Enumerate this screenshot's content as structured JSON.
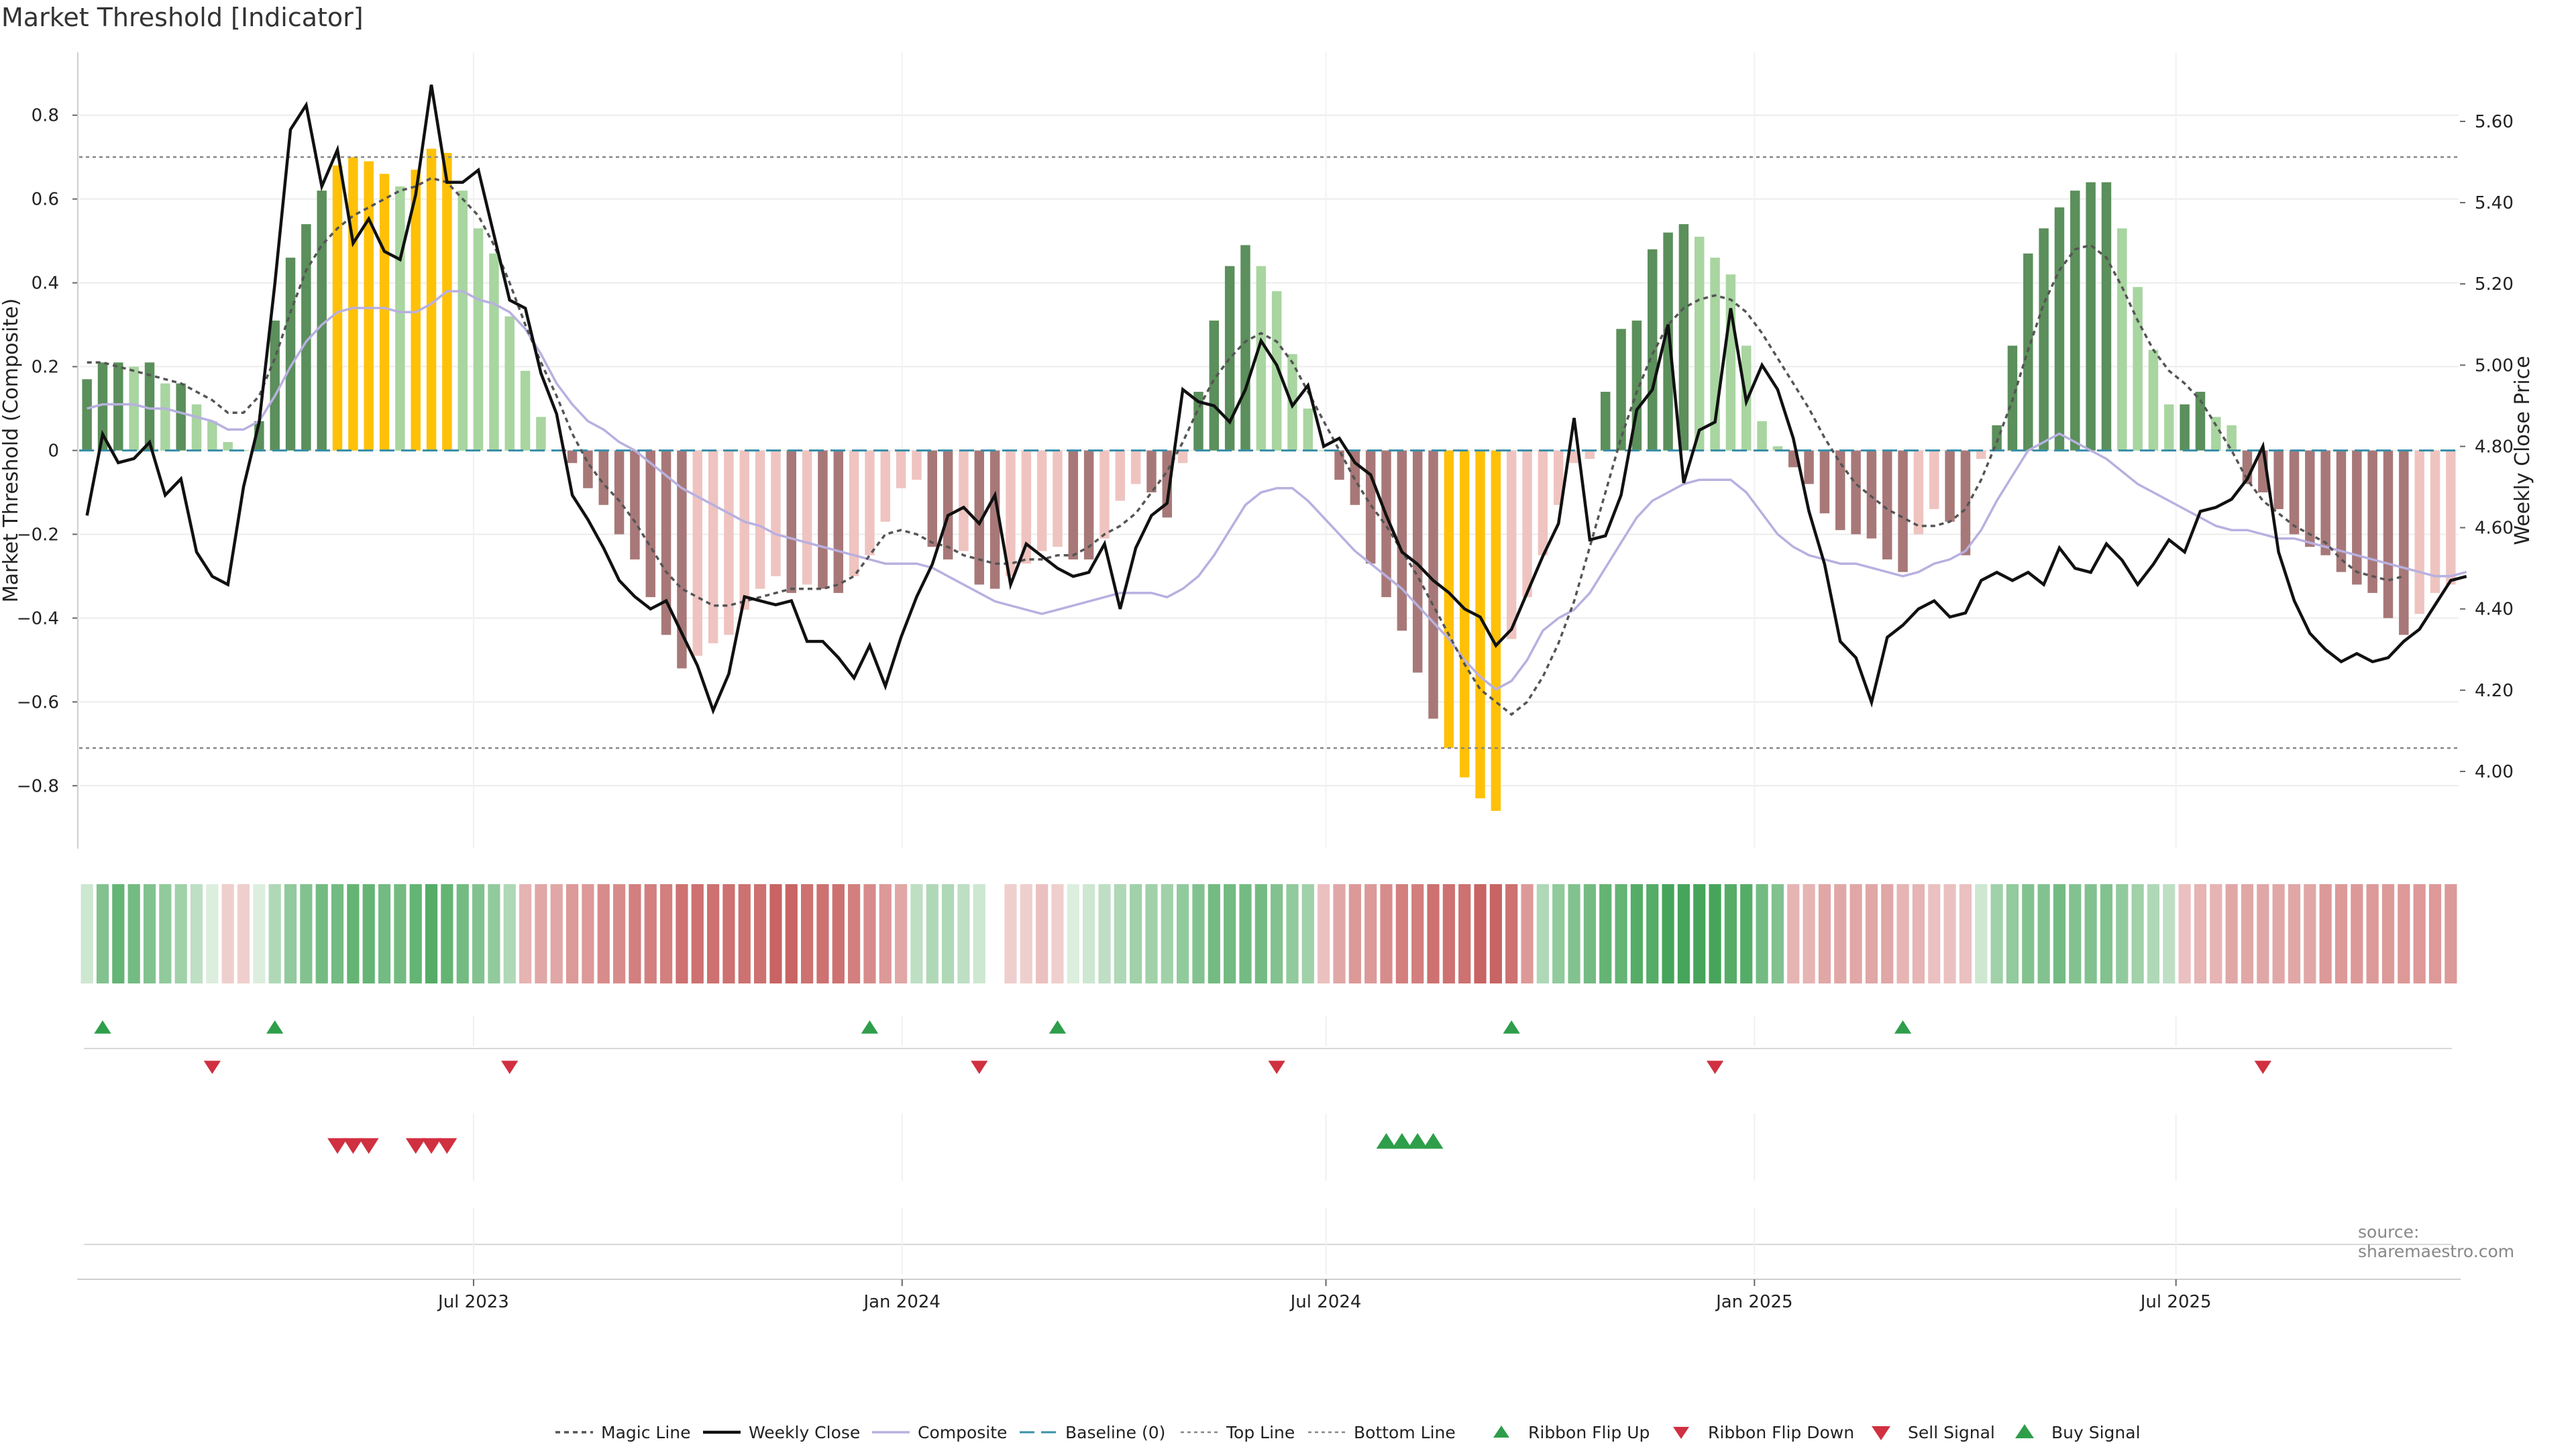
{
  "title": "Market Threshold [Indicator]",
  "source": "source: sharemaestro.com",
  "chart_data": {
    "type": "bar",
    "ylabel_left": "Market Threshold (Composite)",
    "ylabel_right": "Weekly Close Price",
    "yticks_left": [
      "0.8",
      "0.6",
      "0.4",
      "0.2",
      "0",
      "−0.2",
      "−0.4",
      "−0.6",
      "−0.8"
    ],
    "yticks_right": [
      "5.60",
      "5.40",
      "5.20",
      "5.00",
      "4.80",
      "4.60",
      "4.40",
      "4.20",
      "4.00"
    ],
    "ylim_left": [
      -0.95,
      0.95
    ],
    "ylim_right": [
      3.81,
      5.77
    ],
    "xticks": [
      "Jul 2023",
      "Jan 2024",
      "Jul 2024",
      "Jan 2025",
      "Jul 2025"
    ],
    "x_range": [
      "2023-01-16",
      "2025-10-27"
    ],
    "top_line": 0.7,
    "bottom_line": -0.71,
    "colors": {
      "strong_up": "#5b8f5b",
      "weak_up": "#a8d5a0",
      "strong_down": "#a87878",
      "weak_down": "#efc4c0",
      "extreme": "#ffc107",
      "weekly_close": "#111111",
      "composite": "#b8b0e0",
      "magic": "#555555",
      "baseline": "#3a8fa8",
      "buy": "#2e9e4a",
      "sell": "#d03040"
    },
    "threshold_values": [
      0.17,
      0.21,
      0.21,
      0.2,
      0.21,
      0.16,
      0.16,
      0.11,
      0.07,
      0.02,
      0.0,
      0.07,
      0.31,
      0.46,
      0.54,
      0.62,
      0.68,
      0.7,
      0.69,
      0.66,
      0.63,
      0.67,
      0.72,
      0.71,
      0.62,
      0.53,
      0.47,
      0.32,
      0.19,
      0.08,
      0.0,
      -0.03,
      -0.09,
      -0.13,
      -0.2,
      -0.26,
      -0.35,
      -0.44,
      -0.52,
      -0.49,
      -0.46,
      -0.44,
      -0.38,
      -0.33,
      -0.3,
      -0.34,
      -0.32,
      -0.33,
      -0.34,
      -0.3,
      -0.25,
      -0.17,
      -0.09,
      -0.07,
      -0.23,
      -0.26,
      -0.24,
      -0.32,
      -0.33,
      -0.3,
      -0.27,
      -0.24,
      -0.23,
      -0.26,
      -0.26,
      -0.21,
      -0.12,
      -0.08,
      -0.1,
      -0.16,
      -0.03,
      0.14,
      0.31,
      0.44,
      0.49,
      0.44,
      0.38,
      0.23,
      0.1,
      0.0,
      -0.07,
      -0.13,
      -0.27,
      -0.35,
      -0.43,
      -0.53,
      -0.64,
      -0.71,
      -0.78,
      -0.83,
      -0.86,
      -0.45,
      -0.35,
      -0.25,
      -0.13,
      -0.03,
      -0.02,
      0.14,
      0.29,
      0.31,
      0.48,
      0.52,
      0.54,
      0.51,
      0.46,
      0.42,
      0.25,
      0.07,
      0.01,
      -0.04,
      -0.08,
      -0.15,
      -0.19,
      -0.2,
      -0.21,
      -0.26,
      -0.29,
      -0.2,
      -0.14,
      -0.17,
      -0.25,
      -0.02,
      0.06,
      0.25,
      0.47,
      0.53,
      0.58,
      0.62,
      0.64,
      0.64,
      0.53,
      0.39,
      0.24,
      0.11,
      0.11,
      0.14,
      0.08,
      0.06,
      -0.08,
      -0.1,
      -0.14,
      -0.2,
      -0.23,
      -0.25,
      -0.29,
      -0.32,
      -0.34,
      -0.4,
      -0.44,
      -0.39,
      -0.34,
      -0.32
    ],
    "weekly_close": [
      4.63,
      4.83,
      4.76,
      4.77,
      4.81,
      4.68,
      4.72,
      4.54,
      4.48,
      4.46,
      4.7,
      4.86,
      5.2,
      5.58,
      5.64,
      5.44,
      5.53,
      5.3,
      5.36,
      5.28,
      5.26,
      5.42,
      5.69,
      5.45,
      5.45,
      5.48,
      5.32,
      5.16,
      5.14,
      4.98,
      4.88,
      4.68,
      4.62,
      4.55,
      4.47,
      4.43,
      4.4,
      4.42,
      4.34,
      4.26,
      4.15,
      4.24,
      4.43,
      4.42,
      4.41,
      4.42,
      4.32,
      4.32,
      4.28,
      4.23,
      4.31,
      4.21,
      4.33,
      4.43,
      4.51,
      4.63,
      4.65,
      4.61,
      4.68,
      4.46,
      4.56,
      4.53,
      4.5,
      4.48,
      4.49,
      4.56,
      4.4,
      4.55,
      4.63,
      4.66,
      4.94,
      4.91,
      4.9,
      4.86,
      4.94,
      5.06,
      5.0,
      4.9,
      4.95,
      4.8,
      4.82,
      4.76,
      4.73,
      4.63,
      4.54,
      4.51,
      4.47,
      4.44,
      4.4,
      4.38,
      4.31,
      4.35,
      4.44,
      4.53,
      4.61,
      4.87,
      4.57,
      4.58,
      4.68,
      4.89,
      4.94,
      5.1,
      4.71,
      4.84,
      4.86,
      5.14,
      4.91,
      5.0,
      4.94,
      4.82,
      4.64,
      4.51,
      4.32,
      4.28,
      4.17,
      4.33,
      4.36,
      4.4,
      4.42,
      4.38,
      4.39,
      4.47,
      4.49,
      4.47,
      4.49,
      4.46,
      4.55,
      4.5,
      4.49,
      4.56,
      4.52,
      4.46,
      4.51,
      4.57,
      4.54,
      4.64,
      4.65,
      4.67,
      4.72,
      4.8,
      4.54,
      4.42,
      4.34,
      4.3,
      4.27,
      4.29,
      4.27,
      4.28,
      4.32,
      4.35,
      4.41,
      4.47,
      4.48
    ],
    "composite": [
      0.1,
      0.11,
      0.11,
      0.11,
      0.1,
      0.1,
      0.09,
      0.08,
      0.07,
      0.05,
      0.05,
      0.07,
      0.13,
      0.2,
      0.26,
      0.3,
      0.33,
      0.34,
      0.34,
      0.34,
      0.33,
      0.33,
      0.35,
      0.38,
      0.38,
      0.36,
      0.35,
      0.33,
      0.29,
      0.23,
      0.16,
      0.11,
      0.07,
      0.05,
      0.02,
      0.0,
      -0.03,
      -0.06,
      -0.09,
      -0.11,
      -0.13,
      -0.15,
      -0.17,
      -0.18,
      -0.2,
      -0.21,
      -0.22,
      -0.23,
      -0.24,
      -0.25,
      -0.26,
      -0.27,
      -0.27,
      -0.27,
      -0.28,
      -0.3,
      -0.32,
      -0.34,
      -0.36,
      -0.37,
      -0.38,
      -0.39,
      -0.38,
      -0.37,
      -0.36,
      -0.35,
      -0.34,
      -0.34,
      -0.34,
      -0.35,
      -0.33,
      -0.3,
      -0.25,
      -0.19,
      -0.13,
      -0.1,
      -0.09,
      -0.09,
      -0.12,
      -0.16,
      -0.2,
      -0.24,
      -0.27,
      -0.3,
      -0.33,
      -0.37,
      -0.41,
      -0.45,
      -0.5,
      -0.54,
      -0.57,
      -0.55,
      -0.5,
      -0.43,
      -0.4,
      -0.38,
      -0.34,
      -0.28,
      -0.22,
      -0.16,
      -0.12,
      -0.1,
      -0.08,
      -0.07,
      -0.07,
      -0.07,
      -0.1,
      -0.15,
      -0.2,
      -0.23,
      -0.25,
      -0.26,
      -0.27,
      -0.27,
      -0.28,
      -0.29,
      -0.3,
      -0.29,
      -0.27,
      -0.26,
      -0.24,
      -0.19,
      -0.12,
      -0.06,
      0.0,
      0.02,
      0.04,
      0.02,
      0.0,
      -0.02,
      -0.05,
      -0.08,
      -0.1,
      -0.12,
      -0.14,
      -0.16,
      -0.18,
      -0.19,
      -0.19,
      -0.2,
      -0.21,
      -0.21,
      -0.22,
      -0.23,
      -0.24,
      -0.25,
      -0.26,
      -0.27,
      -0.28,
      -0.29,
      -0.3,
      -0.3,
      -0.29
    ],
    "magic_line": [
      0.21,
      0.21,
      0.2,
      0.19,
      0.18,
      0.17,
      0.16,
      0.14,
      0.12,
      0.09,
      0.09,
      0.13,
      0.22,
      0.33,
      0.43,
      0.49,
      0.53,
      0.56,
      0.58,
      0.6,
      0.62,
      0.63,
      0.65,
      0.64,
      0.6,
      0.56,
      0.49,
      0.4,
      0.3,
      0.21,
      0.13,
      0.04,
      -0.03,
      -0.08,
      -0.12,
      -0.17,
      -0.23,
      -0.29,
      -0.33,
      -0.35,
      -0.37,
      -0.37,
      -0.36,
      -0.35,
      -0.34,
      -0.33,
      -0.33,
      -0.33,
      -0.32,
      -0.3,
      -0.25,
      -0.2,
      -0.19,
      -0.2,
      -0.22,
      -0.23,
      -0.25,
      -0.26,
      -0.27,
      -0.27,
      -0.26,
      -0.26,
      -0.25,
      -0.25,
      -0.23,
      -0.2,
      -0.18,
      -0.15,
      -0.1,
      -0.05,
      0.02,
      0.1,
      0.17,
      0.22,
      0.26,
      0.28,
      0.26,
      0.21,
      0.14,
      0.07,
      0.0,
      -0.07,
      -0.13,
      -0.18,
      -0.24,
      -0.3,
      -0.37,
      -0.44,
      -0.51,
      -0.57,
      -0.6,
      -0.63,
      -0.6,
      -0.54,
      -0.46,
      -0.36,
      -0.23,
      -0.1,
      0.03,
      0.14,
      0.23,
      0.3,
      0.34,
      0.36,
      0.37,
      0.36,
      0.33,
      0.28,
      0.22,
      0.16,
      0.1,
      0.03,
      -0.03,
      -0.08,
      -0.11,
      -0.14,
      -0.16,
      -0.18,
      -0.18,
      -0.17,
      -0.14,
      -0.07,
      0.02,
      0.12,
      0.24,
      0.35,
      0.43,
      0.48,
      0.49,
      0.46,
      0.39,
      0.31,
      0.24,
      0.19,
      0.16,
      0.12,
      0.06,
      0.0,
      -0.07,
      -0.12,
      -0.15,
      -0.18,
      -0.2,
      -0.22,
      -0.26,
      -0.29,
      -0.3,
      -0.31,
      -0.3
    ],
    "ribbon": [
      0.01,
      0.06,
      0.08,
      0.07,
      0.06,
      0.05,
      0.04,
      0.02,
      0.0,
      -0.01,
      -0.01,
      0.0,
      0.03,
      0.05,
      0.06,
      0.07,
      0.07,
      0.08,
      0.08,
      0.07,
      0.07,
      0.08,
      0.09,
      0.08,
      0.07,
      0.06,
      0.05,
      0.03,
      -0.03,
      -0.04,
      -0.04,
      -0.05,
      -0.05,
      -0.06,
      -0.06,
      -0.07,
      -0.07,
      -0.07,
      -0.08,
      -0.08,
      -0.08,
      -0.08,
      -0.08,
      -0.08,
      -0.09,
      -0.09,
      -0.08,
      -0.08,
      -0.08,
      -0.07,
      -0.06,
      -0.05,
      -0.04,
      0.02,
      0.03,
      0.03,
      0.02,
      0.01,
      null,
      -0.01,
      -0.01,
      -0.02,
      -0.01,
      0.0,
      0.01,
      0.02,
      0.03,
      0.04,
      0.04,
      0.04,
      0.05,
      0.06,
      0.07,
      0.07,
      0.07,
      0.07,
      0.06,
      0.05,
      0.04,
      -0.02,
      -0.04,
      -0.05,
      -0.05,
      -0.06,
      -0.07,
      -0.07,
      -0.08,
      -0.08,
      -0.08,
      -0.09,
      -0.09,
      -0.08,
      -0.05,
      0.03,
      0.05,
      0.06,
      0.07,
      0.08,
      0.08,
      0.09,
      0.09,
      0.1,
      0.1,
      0.1,
      0.1,
      0.09,
      0.09,
      0.07,
      0.06,
      -0.03,
      -0.03,
      -0.04,
      -0.04,
      -0.04,
      -0.04,
      -0.04,
      -0.03,
      -0.03,
      -0.02,
      -0.02,
      -0.02,
      0.01,
      0.04,
      0.05,
      0.06,
      0.06,
      0.07,
      0.06,
      0.06,
      0.06,
      0.05,
      0.04,
      0.03,
      0.02,
      -0.02,
      -0.03,
      -0.03,
      -0.04,
      -0.04,
      -0.04,
      -0.04,
      -0.04,
      -0.04,
      -0.05,
      -0.05,
      -0.05,
      -0.05,
      -0.05,
      -0.05,
      -0.05,
      -0.05,
      -0.05
    ],
    "ribbon_flip_up": [
      1,
      12,
      50,
      62,
      91,
      116
    ],
    "ribbon_flip_down": [
      8,
      27,
      57,
      76,
      104,
      139
    ],
    "sell_signal": [
      16,
      17,
      18,
      21,
      22,
      23
    ],
    "buy_signal": [
      83,
      84,
      85,
      86
    ],
    "legend": [
      "Magic Line",
      "Weekly Close",
      "Composite",
      "Baseline (0)",
      "Top Line",
      "Bottom Line",
      "Ribbon Flip Up",
      "Ribbon Flip Down",
      "Sell Signal",
      "Buy Signal"
    ]
  }
}
